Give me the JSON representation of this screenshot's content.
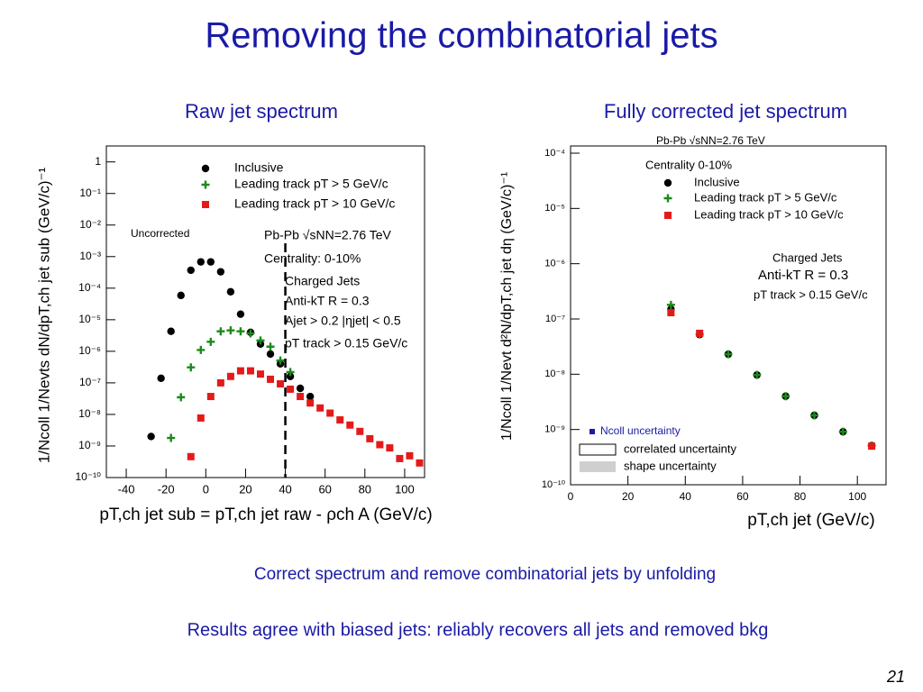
{
  "slide": {
    "title": "Removing the combinatorial jets",
    "captions": [
      "Correct spectrum and remove combinatorial jets by unfolding",
      "Results agree with biased jets: reliably recovers all jets and removed bkg"
    ],
    "page_number": "21"
  },
  "chart_data": [
    {
      "type": "scatter",
      "title": "Raw jet spectrum",
      "x_label": "pT,ch jet sub = pT,ch jet raw - ρch A (GeV/c)",
      "y_label": "1/Ncoll 1/Nevts dN/dpT,ch jet sub (GeV/c)⁻¹",
      "annotations": [
        "Uncorrected",
        "Pb-Pb √sNN=2.76 TeV",
        "Centrality: 0-10%",
        "Charged Jets",
        "Anti-kT R = 0.3",
        "Ajet > 0.2 |ηjet| < 0.5",
        "pT track > 0.15 GeV/c"
      ],
      "log_y": true,
      "cut_line_x": 40,
      "xlim": [
        -50,
        110
      ],
      "xticks": [
        -40,
        -20,
        0,
        20,
        40,
        60,
        80,
        100
      ],
      "ylim": [
        1e-10,
        3.2
      ],
      "yticks": [
        1,
        {
          "value": 0.1,
          "label": "10⁻¹"
        },
        {
          "value": 0.01,
          "label": "10⁻²"
        },
        {
          "value": 0.001,
          "label": "10⁻³"
        },
        {
          "value": 0.0001,
          "label": "10⁻⁴"
        },
        {
          "value": 1e-05,
          "label": "10⁻⁵"
        },
        {
          "value": 1e-06,
          "label": "10⁻⁶"
        },
        {
          "value": 1e-07,
          "label": "10⁻⁷"
        },
        {
          "value": 1e-08,
          "label": "10⁻⁸"
        },
        {
          "value": 1e-09,
          "label": "10⁻⁹"
        },
        {
          "value": 1e-10,
          "label": "10⁻¹⁰"
        }
      ],
      "series": [
        {
          "name": "Inclusive",
          "color": "#000000",
          "marker": "circle",
          "x": [
            -27.5,
            -22.5,
            -17.5,
            -12.5,
            -7.5,
            -2.5,
            2.5,
            7.5,
            12.5,
            17.5,
            22.5,
            27.5,
            32.5,
            37.5,
            42.5,
            47.5,
            52.5
          ],
          "values": [
            2e-09,
            1.4e-07,
            4.3e-06,
            5.9e-05,
            0.00037,
            0.00068,
            0.00068,
            0.00033,
            7.7e-05,
            1.5e-05,
            4e-06,
            1.7e-06,
            8.2e-07,
            4e-07,
            1.6e-07,
            6.7e-08,
            3.7e-08
          ]
        },
        {
          "name": "Leading track pT > 5 GeV/c",
          "color": "#1a8a1a",
          "marker": "plus",
          "x": [
            -17.5,
            -12.5,
            -7.5,
            -2.5,
            2.5,
            7.5,
            12.5,
            17.5,
            22.5,
            27.5,
            32.5,
            37.5,
            42.5
          ],
          "values": [
            1.8e-09,
            3.5e-08,
            3.1e-07,
            1.1e-06,
            2e-06,
            4.3e-06,
            4.6e-06,
            4.3e-06,
            3.7e-06,
            2.2e-06,
            1.4e-06,
            5.1e-07,
            2.2e-07
          ]
        },
        {
          "name": "Leading track pT > 10 GeV/c",
          "color": "#e41a1a",
          "marker": "square",
          "x": [
            -7.5,
            -2.5,
            2.5,
            7.5,
            12.5,
            17.5,
            22.5,
            27.5,
            32.5,
            37.5,
            42.5,
            47.5,
            52.5,
            57.5,
            62.5,
            67.5,
            72.5,
            77.5,
            82.5,
            87.5,
            92.5,
            97.5,
            102.5,
            107.5
          ],
          "values": [
            4.6e-10,
            7.7e-09,
            3.7e-08,
            1e-07,
            1.6e-07,
            2.4e-07,
            2.4e-07,
            1.9e-07,
            1.3e-07,
            9.3e-08,
            6.3e-08,
            3.7e-08,
            2.3e-08,
            1.6e-08,
            1.1e-08,
            6.7e-09,
            4.6e-09,
            2.9e-09,
            1.7e-09,
            1.1e-09,
            8.7e-10,
            4e-10,
            4.9e-10,
            2.9e-10
          ]
        }
      ]
    },
    {
      "type": "scatter",
      "title": "Fully corrected jet spectrum",
      "x_label": "pT,ch jet (GeV/c)",
      "y_label": "1/Ncoll 1/Nevt d²N/dpT,ch jet dη (GeV/c)⁻¹",
      "annotations": [
        "Pb-Pb √sNN=2.76 TeV",
        "Centrality 0-10%",
        "Charged Jets",
        "Anti-kT R = 0.3",
        "pT track > 0.15 GeV/c",
        "Ncoll uncertainty",
        "correlated uncertainty",
        "shape uncertainty"
      ],
      "log_y": true,
      "xlim": [
        0,
        110
      ],
      "xticks": [
        0,
        20,
        40,
        60,
        80,
        100
      ],
      "ylim": [
        1e-10,
        0.000135
      ],
      "yticks": [
        {
          "value": 0.0001,
          "label": "10⁻⁴"
        },
        {
          "value": 1e-05,
          "label": "10⁻⁵"
        },
        {
          "value": 1e-06,
          "label": "10⁻⁶"
        },
        {
          "value": 1e-07,
          "label": "10⁻⁷"
        },
        {
          "value": 1e-08,
          "label": "10⁻⁸"
        },
        {
          "value": 1e-09,
          "label": "10⁻⁹"
        },
        {
          "value": 1e-10,
          "label": "10⁻¹⁰"
        }
      ],
      "series": [
        {
          "name": "Inclusive",
          "color": "#000000",
          "marker": "circle",
          "x": [
            35,
            45,
            55,
            65,
            75,
            85,
            95,
            105
          ],
          "values": [
            1.5e-07,
            5.2e-08,
            2.3e-08,
            9.7e-09,
            4e-09,
            1.8e-09,
            9.1e-10,
            5.1e-10
          ]
        },
        {
          "name": "Leading track pT > 5 GeV/c",
          "color": "#1a8a1a",
          "marker": "plus",
          "x": [
            35,
            45,
            55,
            65,
            75,
            85,
            95,
            105
          ],
          "values": [
            1.8e-07,
            5.3e-08,
            2.3e-08,
            9.7e-09,
            4e-09,
            1.8e-09,
            9.1e-10,
            5.1e-10
          ]
        },
        {
          "name": "Leading track pT > 10 GeV/c",
          "color": "#e41a1a",
          "marker": "square",
          "x": [
            35,
            45,
            105
          ],
          "values": [
            1.3e-07,
            5.5e-08,
            5e-10
          ]
        }
      ]
    }
  ]
}
